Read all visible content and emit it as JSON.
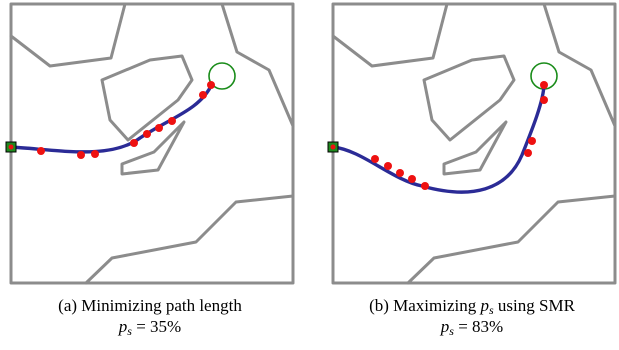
{
  "panels": [
    {
      "id": "a",
      "caption_prefix": "(a) Minimizing path length",
      "metric_symbol": "p",
      "metric_subscript": "s",
      "metric_value": "= 35%"
    },
    {
      "id": "b",
      "caption_prefix": "(b) Maximizing",
      "caption_symbol": "p",
      "caption_subscript": "s",
      "caption_suffix": "using SMR",
      "metric_symbol": "p",
      "metric_subscript": "s",
      "metric_value": "= 83%"
    }
  ],
  "colors": {
    "obstacle": "#8c8c8c",
    "path": "#2b2b96",
    "waypoint": "#ee1111",
    "start": "#1f8a1f",
    "goal": "#1a8c1a"
  }
}
